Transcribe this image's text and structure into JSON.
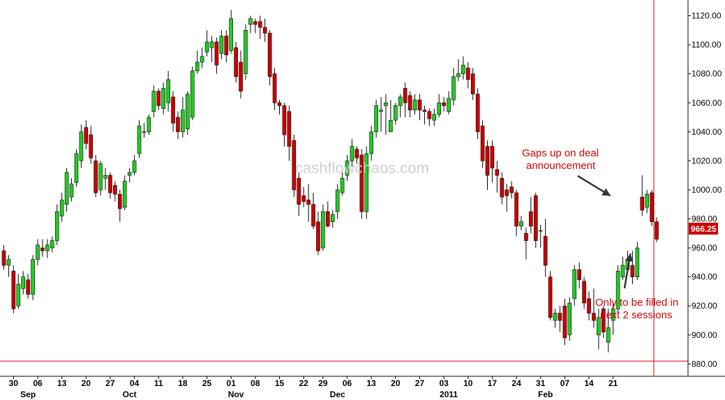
{
  "chart_data": {
    "type": "candlestick",
    "title": "",
    "watermark": "cashflowchaos.com",
    "last_price_label": "966.25",
    "colors": {
      "up": "#22cc22",
      "down": "#cc0000",
      "wick": "#000000",
      "marker": "#cc0000",
      "axis_text": "#000000",
      "annotation": "#d10000"
    },
    "y_ticks": [
      880,
      900,
      920,
      940,
      960,
      980,
      1000,
      1020,
      1040,
      1060,
      1080,
      1100,
      1120
    ],
    "y_tick_labels": [
      "880.00",
      "900.00",
      "920.00",
      "940.00",
      "960.00",
      "980.00",
      "1000.00",
      "1020.00",
      "1040.00",
      "1060.00",
      "1080.00",
      "1100.00",
      "1120.00"
    ],
    "ylim": [
      872,
      1127
    ],
    "x_ticks": [
      {
        "index": 2,
        "label": "30"
      },
      {
        "index": 7,
        "label": "06"
      },
      {
        "index": 12,
        "label": "13"
      },
      {
        "index": 17,
        "label": "20"
      },
      {
        "index": 22,
        "label": "27"
      },
      {
        "index": 27,
        "label": "04"
      },
      {
        "index": 32,
        "label": "11"
      },
      {
        "index": 37,
        "label": "18"
      },
      {
        "index": 42,
        "label": "25"
      },
      {
        "index": 47,
        "label": "01"
      },
      {
        "index": 52,
        "label": "08"
      },
      {
        "index": 57,
        "label": "15"
      },
      {
        "index": 62,
        "label": "22"
      },
      {
        "index": 66,
        "label": "29"
      },
      {
        "index": 71,
        "label": "06"
      },
      {
        "index": 76,
        "label": "13"
      },
      {
        "index": 81,
        "label": "20"
      },
      {
        "index": 86,
        "label": "27"
      },
      {
        "index": 91,
        "label": "03"
      },
      {
        "index": 96,
        "label": "10"
      },
      {
        "index": 101,
        "label": "17"
      },
      {
        "index": 106,
        "label": "24"
      },
      {
        "index": 111,
        "label": "31"
      },
      {
        "index": 116,
        "label": "07"
      },
      {
        "index": 121,
        "label": "14"
      },
      {
        "index": 126,
        "label": "21"
      }
    ],
    "month_labels": [
      {
        "index": 5,
        "label": "Sep"
      },
      {
        "index": 26,
        "label": "Oct"
      },
      {
        "index": 48,
        "label": "Nov"
      },
      {
        "index": 69,
        "label": "Dec"
      },
      {
        "index": 92,
        "label": "2011"
      },
      {
        "index": 112,
        "label": "Feb"
      }
    ],
    "reference_levels": [
      882
    ],
    "annotations": [
      {
        "lines": [
          "Gaps up on deal",
          "announcement"
        ],
        "target_index": 126,
        "target_value": 994
      },
      {
        "lines": [
          "Only to be filled in",
          "next 2 sessions"
        ],
        "target_index": 129,
        "target_value": 958
      }
    ],
    "candles": [
      [
        958,
        948,
        962,
        945
      ],
      [
        948,
        952,
        955,
        940
      ],
      [
        944,
        918,
        948,
        915
      ],
      [
        920,
        935,
        942,
        918
      ],
      [
        932,
        940,
        944,
        928
      ],
      [
        938,
        928,
        942,
        925
      ],
      [
        928,
        952,
        955,
        924
      ],
      [
        952,
        962,
        966,
        948
      ],
      [
        960,
        958,
        966,
        954
      ],
      [
        958,
        962,
        966,
        953
      ],
      [
        960,
        965,
        968,
        957
      ],
      [
        965,
        985,
        990,
        962
      ],
      [
        982,
        993,
        998,
        978
      ],
      [
        990,
        1012,
        1015,
        985
      ],
      [
        995,
        1004,
        1008,
        992
      ],
      [
        1005,
        1025,
        1028,
        1002
      ],
      [
        1020,
        1040,
        1045,
        1015
      ],
      [
        1043,
        1032,
        1048,
        1028
      ],
      [
        1038,
        1022,
        1044,
        1018
      ],
      [
        1020,
        998,
        1024,
        995
      ],
      [
        1000,
        1018,
        1020,
        996
      ],
      [
        1008,
        1010,
        1015,
        1000
      ],
      [
        1010,
        998,
        1012,
        994
      ],
      [
        1003,
        997,
        1006,
        992
      ],
      [
        997,
        987,
        1000,
        978
      ],
      [
        988,
        1006,
        1010,
        986
      ],
      [
        1010,
        1012,
        1015,
        1005
      ],
      [
        1012,
        1020,
        1024,
        1010
      ],
      [
        1025,
        1044,
        1048,
        1022
      ],
      [
        1040,
        1040,
        1046,
        1036
      ],
      [
        1040,
        1050,
        1052,
        1038
      ],
      [
        1054,
        1068,
        1072,
        1050
      ],
      [
        1068,
        1058,
        1070,
        1055
      ],
      [
        1056,
        1070,
        1074,
        1052
      ],
      [
        1060,
        1076,
        1082,
        1054
      ],
      [
        1064,
        1046,
        1068,
        1040
      ],
      [
        1050,
        1040,
        1054,
        1035
      ],
      [
        1040,
        1055,
        1064,
        1036
      ],
      [
        1042,
        1066,
        1068,
        1038
      ],
      [
        1050,
        1082,
        1085,
        1048
      ],
      [
        1082,
        1088,
        1096,
        1080
      ],
      [
        1088,
        1092,
        1098,
        1084
      ],
      [
        1095,
        1102,
        1110,
        1092
      ],
      [
        1098,
        1102,
        1106,
        1088
      ],
      [
        1102,
        1086,
        1105,
        1080
      ],
      [
        1094,
        1106,
        1110,
        1090
      ],
      [
        1106,
        1093,
        1110,
        1088
      ],
      [
        1096,
        1118,
        1124,
        1094
      ],
      [
        1098,
        1078,
        1102,
        1074
      ],
      [
        1088,
        1068,
        1096,
        1063
      ],
      [
        1080,
        1110,
        1114,
        1076
      ],
      [
        1114,
        1118,
        1120,
        1108
      ],
      [
        1116,
        1114,
        1118,
        1108
      ],
      [
        1116,
        1112,
        1120,
        1104
      ],
      [
        1112,
        1108,
        1118,
        1102
      ],
      [
        1108,
        1078,
        1110,
        1072
      ],
      [
        1080,
        1060,
        1084,
        1055
      ],
      [
        1060,
        1058,
        1062,
        1052
      ],
      [
        1058,
        1038,
        1060,
        1030
      ],
      [
        1054,
        1030,
        1058,
        1020
      ],
      [
        1034,
        1000,
        1038,
        995
      ],
      [
        1008,
        990,
        1012,
        982
      ],
      [
        996,
        992,
        1002,
        988
      ],
      [
        993,
        990,
        1004,
        978
      ],
      [
        990,
        975,
        998,
        973
      ],
      [
        978,
        958,
        985,
        955
      ],
      [
        960,
        985,
        990,
        958
      ],
      [
        985,
        975,
        992,
        974
      ],
      [
        978,
        983,
        986,
        974
      ],
      [
        985,
        1000,
        1004,
        980
      ],
      [
        998,
        1008,
        1012,
        996
      ],
      [
        1010,
        1020,
        1024,
        1006
      ],
      [
        1020,
        1030,
        1035,
        1016
      ],
      [
        1028,
        1022,
        1030,
        1018
      ],
      [
        1024,
        985,
        1028,
        980
      ],
      [
        985,
        1025,
        1030,
        980
      ],
      [
        1025,
        1040,
        1044,
        1020
      ],
      [
        1040,
        1058,
        1062,
        1036
      ],
      [
        1054,
        1055,
        1064,
        1040
      ],
      [
        1058,
        1060,
        1066,
        1038
      ],
      [
        1040,
        1048,
        1062,
        1040
      ],
      [
        1048,
        1058,
        1060,
        1045
      ],
      [
        1058,
        1064,
        1066,
        1050
      ],
      [
        1070,
        1060,
        1074,
        1050
      ],
      [
        1065,
        1055,
        1068,
        1050
      ],
      [
        1055,
        1062,
        1066,
        1052
      ],
      [
        1062,
        1055,
        1066,
        1048
      ],
      [
        1055,
        1054,
        1058,
        1045
      ],
      [
        1054,
        1049,
        1056,
        1044
      ],
      [
        1048,
        1052,
        1056,
        1044
      ],
      [
        1052,
        1060,
        1066,
        1050
      ],
      [
        1060,
        1058,
        1064,
        1054
      ],
      [
        1054,
        1063,
        1068,
        1052
      ],
      [
        1062,
        1078,
        1084,
        1058
      ],
      [
        1078,
        1080,
        1090,
        1075
      ],
      [
        1080,
        1086,
        1092,
        1076
      ],
      [
        1084,
        1076,
        1088,
        1070
      ],
      [
        1080,
        1066,
        1084,
        1062
      ],
      [
        1066,
        1040,
        1070,
        1035
      ],
      [
        1044,
        1020,
        1048,
        1015
      ],
      [
        1030,
        1010,
        1034,
        1000
      ],
      [
        1030,
        1015,
        1034,
        1005
      ],
      [
        1014,
        1010,
        1020,
        998
      ],
      [
        1008,
        995,
        1012,
        990
      ],
      [
        1000,
        996,
        1004,
        985
      ],
      [
        1002,
        998,
        1006,
        994
      ],
      [
        998,
        975,
        1000,
        968
      ],
      [
        975,
        978,
        982,
        972
      ],
      [
        970,
        965,
        974,
        952
      ],
      [
        985,
        975,
        995,
        970
      ],
      [
        996,
        965,
        998,
        960
      ],
      [
        972,
        972,
        976,
        960
      ],
      [
        968,
        948,
        980,
        940
      ],
      [
        940,
        912,
        944,
        910
      ],
      [
        910,
        915,
        918,
        905
      ],
      [
        915,
        910,
        920,
        902
      ],
      [
        920,
        898,
        925,
        893
      ],
      [
        900,
        922,
        926,
        896
      ],
      [
        925,
        945,
        948,
        920
      ],
      [
        945,
        938,
        950,
        932
      ],
      [
        937,
        922,
        940,
        918
      ],
      [
        925,
        915,
        930,
        910
      ],
      [
        915,
        910,
        932,
        905
      ],
      [
        900,
        912,
        918,
        890
      ],
      [
        918,
        902,
        920,
        898
      ],
      [
        895,
        905,
        918,
        888
      ],
      [
        910,
        918,
        922,
        900
      ],
      [
        918,
        944,
        948,
        915
      ],
      [
        940,
        948,
        954,
        938
      ],
      [
        945,
        952,
        958,
        942
      ],
      [
        948,
        940,
        958,
        935
      ],
      [
        940,
        960,
        964,
        938
      ],
      [
        995,
        986,
        1010,
        982
      ],
      [
        988,
        997,
        1000,
        984
      ],
      [
        998,
        978,
        1000,
        975
      ],
      [
        978,
        966,
        981,
        964
      ]
    ]
  },
  "annotation_texts": {
    "gap_line1": "Gaps up on deal",
    "gap_line2": "announcement",
    "fill_line1": "Only to be filled in",
    "fill_line2": "next 2 sessions"
  }
}
